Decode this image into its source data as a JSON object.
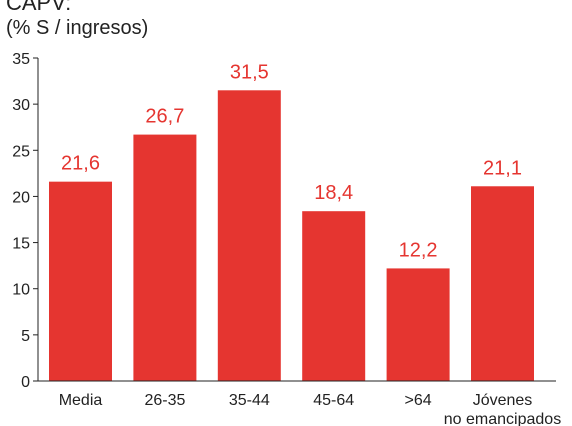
{
  "chart_data": {
    "type": "bar",
    "title": "CAPV:",
    "subtitle": "(% S / ingresos)",
    "categories": [
      [
        "Media"
      ],
      [
        "26-35"
      ],
      [
        "35-44"
      ],
      [
        "45-64"
      ],
      [
        ">64"
      ],
      [
        "Jóvenes",
        "no emancipados"
      ]
    ],
    "values": [
      21.6,
      26.7,
      31.5,
      18.4,
      12.2,
      21.1
    ],
    "value_labels": [
      "21,6",
      "26,7",
      "31,5",
      "18,4",
      "12,2",
      "21,1"
    ],
    "y_ticks": [
      "0",
      "5",
      "10",
      "15",
      "20",
      "25",
      "30",
      "35"
    ],
    "ylim": [
      0,
      35
    ],
    "grid": false,
    "colors": {
      "bar": "#e53530",
      "value_label": "#e53530",
      "axis": "#222222"
    }
  }
}
